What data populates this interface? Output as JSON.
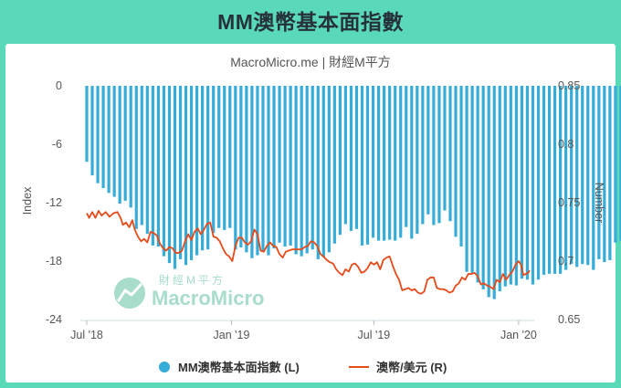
{
  "title": "MM澳幣基本面指數",
  "subtitle": "MacroMicro.me | 財經M平方",
  "watermark": {
    "cn": "財經M平方",
    "en": "MacroMicro"
  },
  "colors": {
    "header_bg": "#5ad9b8",
    "bar": "#36acd9",
    "line": "#e64a19"
  },
  "chart_data": {
    "type": "bar+line",
    "left_axis": {
      "label": "Index",
      "range": [
        -24,
        0
      ],
      "ticks": [
        "0",
        "-6",
        "-12",
        "-18",
        "-24"
      ]
    },
    "right_axis": {
      "label": "Number",
      "range": [
        0.65,
        0.85
      ],
      "ticks": [
        "0.85",
        "0.8",
        "0.75",
        "0.7",
        "0.65"
      ]
    },
    "x_ticks": [
      "Jul '18",
      "Jan '19",
      "Jul '19",
      "Jan '20"
    ],
    "x_range": [
      "2018-07-01",
      "2020-01-15"
    ],
    "bars": {
      "name": "MM澳幣基本面指數 (L)",
      "start": "2018-07-01",
      "step_days": 7,
      "values": [
        -7.8,
        -9.2,
        -10,
        -10.5,
        -11,
        -11.4,
        -12.1,
        -11.8,
        -12.5,
        -14.7,
        -14.3,
        -15.2,
        -16.4,
        -16.5,
        -17.5,
        -18.2,
        -18.8,
        -17.8,
        -18.4,
        -17.9,
        -17.4,
        -16.9,
        -16.8,
        -15.1,
        -14.6,
        -14.8,
        -14.6,
        -16.8,
        -16.6,
        -17.1,
        -17.7,
        -17.4,
        -17,
        -17.4,
        -16.7,
        -16.1,
        -16.5,
        -16.4,
        -17.3,
        -17.5,
        -17.2,
        -16.8,
        -17.8,
        -17.6,
        -17.1,
        -16.2,
        -15.3,
        -14.2,
        -14.9,
        -14.7,
        -16.4,
        -16.3,
        -15.6,
        -15.9,
        -15.9,
        -15.8,
        -15.9,
        -15.6,
        -14.5,
        -15.7,
        -15.2,
        -14.2,
        -13.2,
        -14.3,
        -14.1,
        -12.8,
        -13.9,
        -15.5,
        -16.5,
        -19.1,
        -19.2,
        -20.2,
        -20.9,
        -21.7,
        -21.9,
        -21.1,
        -20.6,
        -20.4,
        -20.5,
        -19.8,
        -19.9,
        -20.4,
        -19.9,
        -19.4,
        -19.3,
        -19.3,
        -19.3,
        -18.9,
        -18.3,
        -18.6,
        -18.3,
        -18.4,
        -18.9,
        -17.8,
        -18.1,
        -17.9,
        -16.1,
        -15.9
      ]
    },
    "line": {
      "name": "澳幣/美元 (R)",
      "points": [
        [
          "2018-07-01",
          0.741
        ],
        [
          "2018-07-04",
          0.737
        ],
        [
          "2018-07-08",
          0.742
        ],
        [
          "2018-07-12",
          0.737
        ],
        [
          "2018-07-16",
          0.743
        ],
        [
          "2018-07-20",
          0.739
        ],
        [
          "2018-07-25",
          0.742
        ],
        [
          "2018-07-30",
          0.738
        ],
        [
          "2018-08-04",
          0.741
        ],
        [
          "2018-08-09",
          0.742
        ],
        [
          "2018-08-13",
          0.737
        ],
        [
          "2018-08-16",
          0.731
        ],
        [
          "2018-08-20",
          0.733
        ],
        [
          "2018-08-24",
          0.729
        ],
        [
          "2018-08-28",
          0.735
        ],
        [
          "2018-08-31",
          0.727
        ],
        [
          "2018-09-04",
          0.721
        ],
        [
          "2018-09-08",
          0.717
        ],
        [
          "2018-09-12",
          0.719
        ],
        [
          "2018-09-16",
          0.716
        ],
        [
          "2018-09-20",
          0.725
        ],
        [
          "2018-09-24",
          0.724
        ],
        [
          "2018-09-28",
          0.722
        ],
        [
          "2018-10-02",
          0.715
        ],
        [
          "2018-10-06",
          0.711
        ],
        [
          "2018-10-10",
          0.709
        ],
        [
          "2018-10-14",
          0.712
        ],
        [
          "2018-10-18",
          0.711
        ],
        [
          "2018-10-22",
          0.707
        ],
        [
          "2018-10-26",
          0.707
        ],
        [
          "2018-10-30",
          0.709
        ],
        [
          "2018-11-03",
          0.717
        ],
        [
          "2018-11-07",
          0.723
        ],
        [
          "2018-11-11",
          0.718
        ],
        [
          "2018-11-15",
          0.725
        ],
        [
          "2018-11-19",
          0.728
        ],
        [
          "2018-11-23",
          0.723
        ],
        [
          "2018-11-27",
          0.727
        ],
        [
          "2018-12-01",
          0.732
        ],
        [
          "2018-12-05",
          0.733
        ],
        [
          "2018-12-09",
          0.721
        ],
        [
          "2018-12-13",
          0.72
        ],
        [
          "2018-12-17",
          0.717
        ],
        [
          "2018-12-21",
          0.711
        ],
        [
          "2018-12-25",
          0.706
        ],
        [
          "2018-12-29",
          0.704
        ],
        [
          "2019-01-02",
          0.7
        ],
        [
          "2019-01-06",
          0.713
        ],
        [
          "2019-01-10",
          0.72
        ],
        [
          "2019-01-14",
          0.72
        ],
        [
          "2019-01-18",
          0.716
        ],
        [
          "2019-01-22",
          0.714
        ],
        [
          "2019-01-26",
          0.717
        ],
        [
          "2019-01-30",
          0.727
        ],
        [
          "2019-02-03",
          0.723
        ],
        [
          "2019-02-07",
          0.709
        ],
        [
          "2019-02-11",
          0.708
        ],
        [
          "2019-02-15",
          0.713
        ],
        [
          "2019-02-19",
          0.716
        ],
        [
          "2019-02-23",
          0.713
        ],
        [
          "2019-02-27",
          0.712
        ],
        [
          "2019-03-03",
          0.706
        ],
        [
          "2019-03-07",
          0.703
        ],
        [
          "2019-03-11",
          0.708
        ],
        [
          "2019-03-15",
          0.709
        ],
        [
          "2019-03-19",
          0.71
        ],
        [
          "2019-03-23",
          0.71
        ],
        [
          "2019-03-27",
          0.71
        ],
        [
          "2019-03-31",
          0.71
        ],
        [
          "2019-04-04",
          0.712
        ],
        [
          "2019-04-08",
          0.713
        ],
        [
          "2019-04-12",
          0.717
        ],
        [
          "2019-04-16",
          0.716
        ],
        [
          "2019-04-20",
          0.713
        ],
        [
          "2019-04-24",
          0.706
        ],
        [
          "2019-04-28",
          0.704
        ],
        [
          "2019-05-02",
          0.701
        ],
        [
          "2019-05-06",
          0.699
        ],
        [
          "2019-05-10",
          0.698
        ],
        [
          "2019-05-14",
          0.693
        ],
        [
          "2019-05-18",
          0.69
        ],
        [
          "2019-05-22",
          0.688
        ],
        [
          "2019-05-26",
          0.693
        ],
        [
          "2019-05-30",
          0.691
        ],
        [
          "2019-06-03",
          0.697
        ],
        [
          "2019-06-07",
          0.698
        ],
        [
          "2019-06-11",
          0.695
        ],
        [
          "2019-06-15",
          0.69
        ],
        [
          "2019-06-19",
          0.691
        ],
        [
          "2019-06-23",
          0.694
        ],
        [
          "2019-06-27",
          0.699
        ],
        [
          "2019-07-01",
          0.697
        ],
        [
          "2019-07-05",
          0.699
        ],
        [
          "2019-07-09",
          0.693
        ],
        [
          "2019-07-13",
          0.701
        ],
        [
          "2019-07-17",
          0.703
        ],
        [
          "2019-07-21",
          0.704
        ],
        [
          "2019-07-25",
          0.696
        ],
        [
          "2019-07-29",
          0.689
        ],
        [
          "2019-08-02",
          0.684
        ],
        [
          "2019-08-06",
          0.675
        ],
        [
          "2019-08-10",
          0.676
        ],
        [
          "2019-08-14",
          0.677
        ],
        [
          "2019-08-18",
          0.675
        ],
        [
          "2019-08-22",
          0.676
        ],
        [
          "2019-08-26",
          0.673
        ],
        [
          "2019-08-30",
          0.672
        ],
        [
          "2019-09-03",
          0.674
        ],
        [
          "2019-09-07",
          0.684
        ],
        [
          "2019-09-11",
          0.686
        ],
        [
          "2019-09-15",
          0.686
        ],
        [
          "2019-09-19",
          0.677
        ],
        [
          "2019-09-23",
          0.676
        ],
        [
          "2019-09-27",
          0.676
        ],
        [
          "2019-10-01",
          0.675
        ],
        [
          "2019-10-05",
          0.673
        ],
        [
          "2019-10-09",
          0.674
        ],
        [
          "2019-10-13",
          0.679
        ],
        [
          "2019-10-17",
          0.681
        ],
        [
          "2019-10-21",
          0.686
        ],
        [
          "2019-10-25",
          0.684
        ],
        [
          "2019-10-29",
          0.689
        ],
        [
          "2019-11-02",
          0.689
        ],
        [
          "2019-11-06",
          0.69
        ],
        [
          "2019-11-10",
          0.687
        ],
        [
          "2019-11-14",
          0.68
        ],
        [
          "2019-11-18",
          0.681
        ],
        [
          "2019-11-22",
          0.679
        ],
        [
          "2019-11-26",
          0.678
        ],
        [
          "2019-11-30",
          0.676
        ],
        [
          "2019-12-04",
          0.684
        ],
        [
          "2019-12-08",
          0.682
        ],
        [
          "2019-12-12",
          0.689
        ],
        [
          "2019-12-16",
          0.684
        ],
        [
          "2019-12-20",
          0.688
        ],
        [
          "2019-12-24",
          0.691
        ],
        [
          "2019-12-28",
          0.697
        ],
        [
          "2020-01-01",
          0.7
        ],
        [
          "2020-01-04",
          0.697
        ],
        [
          "2020-01-07",
          0.688
        ],
        [
          "2020-01-10",
          0.689
        ],
        [
          "2020-01-13",
          0.69
        ],
        [
          "2020-01-15",
          0.692
        ]
      ]
    },
    "legend": [
      {
        "label": "MM澳幣基本面指數 (L)",
        "marker": "circle",
        "color": "#36acd9"
      },
      {
        "label": "澳幣/美元 (R)",
        "marker": "line",
        "color": "#e64a19"
      }
    ],
    "legend_position": "bottom",
    "grid": false
  }
}
